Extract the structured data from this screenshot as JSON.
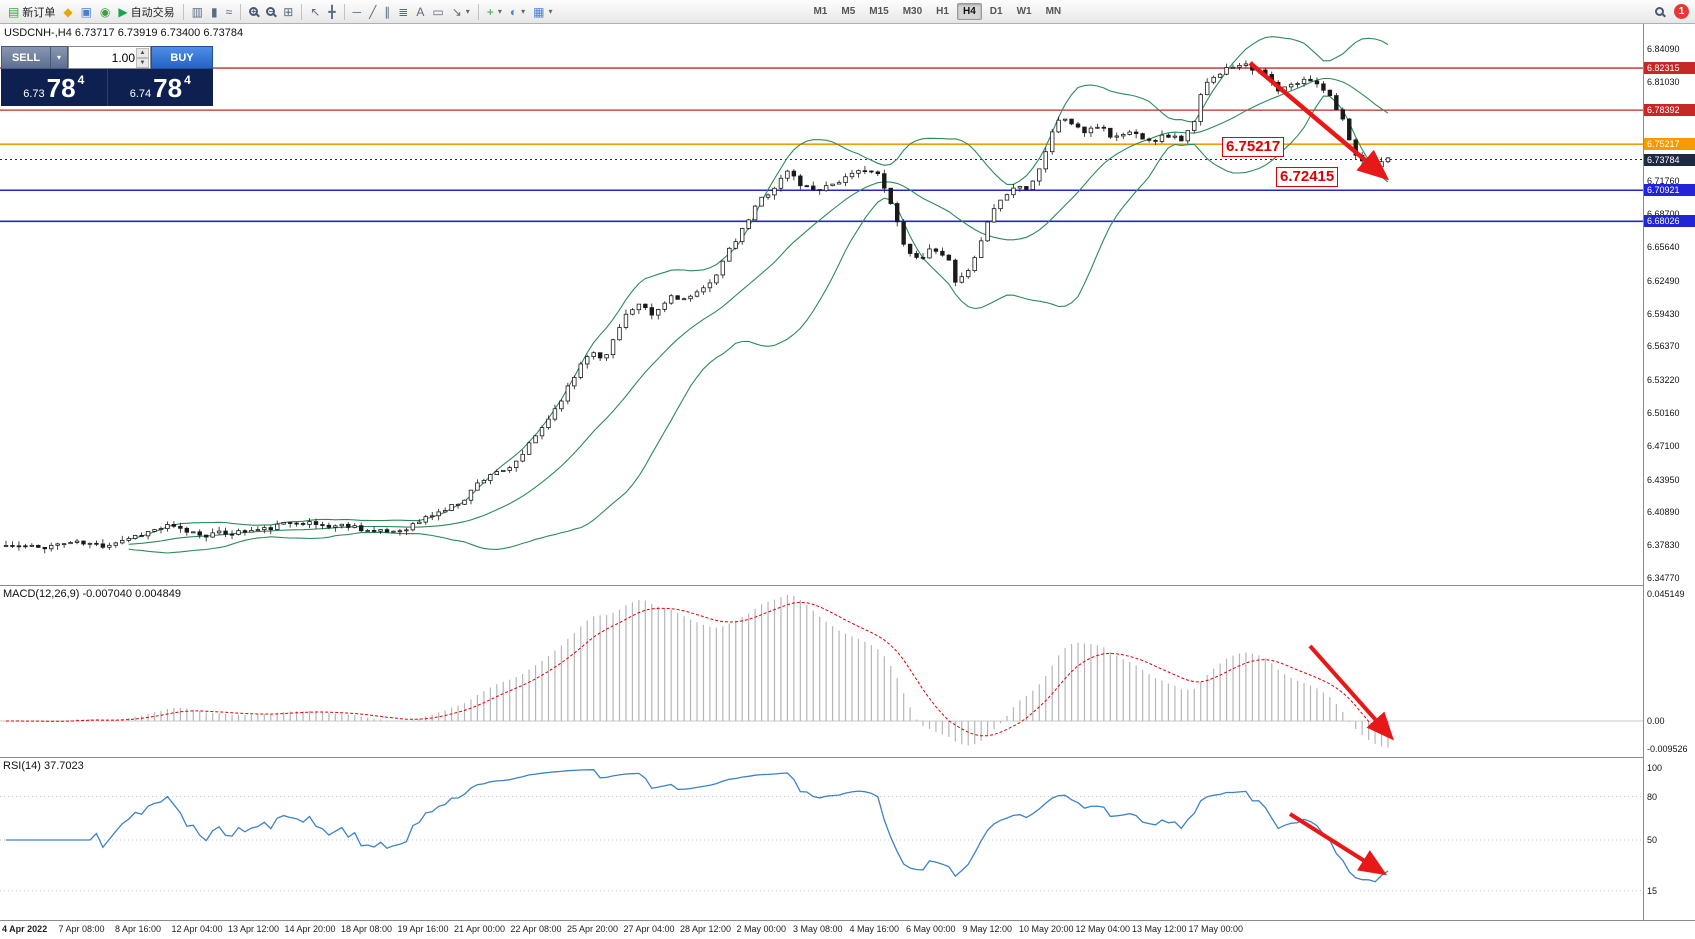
{
  "toolbar": {
    "notification_count": "1",
    "groups": [
      {
        "items": [
          {
            "name": "new-order-button",
            "glyph": "▤",
            "color": "#3c9f40",
            "label": "新订单"
          },
          {
            "name": "layout-button",
            "glyph": "◆",
            "color": "#e5a800"
          },
          {
            "name": "charts-button",
            "glyph": "▣",
            "color": "#4a7fd4"
          },
          {
            "name": "refresh-button",
            "glyph": "◉",
            "color": "#3c9f40"
          },
          {
            "name": "algo-trading-button",
            "glyph": "▶",
            "color": "#19a54a",
            "label": "自动交易"
          }
        ]
      },
      {
        "type": "sep"
      },
      {
        "items": [
          {
            "name": "bars-chart-type-button",
            "glyph": "▥"
          },
          {
            "name": "candles-chart-type-button",
            "glyph": "▮"
          },
          {
            "name": "line-chart-type-button",
            "glyph": "≈"
          }
        ]
      },
      {
        "type": "sep"
      },
      {
        "items": [
          {
            "name": "zoom-in-button",
            "shape": "mag",
            "sign": "+"
          },
          {
            "name": "zoom-out-button",
            "shape": "mag",
            "sign": "−"
          },
          {
            "name": "tile-windows-button",
            "glyph": "⊞"
          }
        ]
      },
      {
        "type": "sep"
      },
      {
        "items": [
          {
            "name": "cursor-tool-button",
            "glyph": "↖"
          },
          {
            "name": "crosshair-tool-button",
            "glyph": "╋"
          }
        ]
      },
      {
        "type": "sep"
      },
      {
        "items": [
          {
            "name": "horizontal-line-tool-button",
            "glyph": "─"
          },
          {
            "name": "trendline-tool-button",
            "glyph": "╱"
          },
          {
            "name": "channel-tool-button",
            "glyph": "∥"
          },
          {
            "name": "fibonacci-tool-button",
            "glyph": "≣"
          },
          {
            "name": "text-tool-button",
            "glyph": "A"
          },
          {
            "name": "label-tool-button",
            "glyph": "▭"
          },
          {
            "name": "arrows-tool-dropdown",
            "glyph": "↘",
            "caret": true
          }
        ]
      },
      {
        "type": "sep"
      },
      {
        "items": [
          {
            "name": "indicators-dropdown",
            "glyph": "+",
            "color": "#2f9e44",
            "caret": true
          },
          {
            "name": "period-dropdown",
            "glyph": "◐",
            "color": "#4a7fd4",
            "caret": true
          },
          {
            "name": "template-dropdown",
            "glyph": "▦",
            "color": "#4a7fd4",
            "caret": true
          }
        ]
      }
    ],
    "timeframes": [
      {
        "label": "M1"
      },
      {
        "label": "M5"
      },
      {
        "label": "M15"
      },
      {
        "label": "M30"
      },
      {
        "label": "H1"
      },
      {
        "label": "H4",
        "active": true
      },
      {
        "label": "D1"
      },
      {
        "label": "W1"
      },
      {
        "label": "MN"
      }
    ]
  },
  "chart": {
    "title": "USDCNH-,H4 6.73717 6.73919 6.73400 6.73784"
  },
  "trade_panel": {
    "sell_label": "SELL",
    "buy_label": "BUY",
    "volume": "1.00",
    "sell_price": {
      "base": "6.73",
      "pips": "78",
      "point": "4"
    },
    "buy_price": {
      "base": "6.74",
      "pips": "78",
      "point": "4"
    }
  },
  "annotations": {
    "upper": "6.75217",
    "lower": "6.72415"
  },
  "price_axis": {
    "regular": [
      "6.84090",
      "6.81030",
      "6.71760",
      "6.68700",
      "6.65640",
      "6.62490",
      "6.59430",
      "6.56370",
      "6.53220",
      "6.50160",
      "6.47100",
      "6.43950",
      "6.40890",
      "6.37830",
      "6.34770"
    ],
    "levels": [
      {
        "value": "6.82315",
        "color": "#c62828",
        "width": 1.3
      },
      {
        "value": "6.78392",
        "color": "#c62828",
        "width": 1.3
      },
      {
        "value": "6.75217",
        "color": "#f59b00",
        "width": 1.6
      },
      {
        "value": "6.73784",
        "color": "#1e2a44",
        "width": 1,
        "dash": "2,3"
      },
      {
        "value": "6.70921",
        "color": "#2323d8",
        "width": 1.6
      },
      {
        "value": "6.68026",
        "color": "#2323d8",
        "width": 1.6
      }
    ]
  },
  "indicators": {
    "macd": {
      "label": "MACD(12,26,9) -0.007040 0.004849",
      "axis": [
        "0.045149",
        "0.00",
        "-0.009526"
      ]
    },
    "rsi": {
      "label": "RSI(14) 37.7023",
      "axis": [
        "100",
        "80",
        "50",
        "15"
      ]
    }
  },
  "time_axis": [
    "4 Apr 2022",
    "7 Apr 08:00",
    "8 Apr 16:00",
    "12 Apr 04:00",
    "13 Apr 12:00",
    "14 Apr 20:00",
    "18 Apr 08:00",
    "19 Apr 16:00",
    "21 Apr 00:00",
    "22 Apr 08:00",
    "25 Apr 20:00",
    "27 Apr 04:00",
    "28 Apr 12:00",
    "2 May 00:00",
    "3 May 08:00",
    "4 May 16:00",
    "6 May 00:00",
    "9 May 12:00",
    "10 May 20:00",
    "12 May 04:00",
    "13 May 12:00",
    "17 May 00:00"
  ],
  "chart_data": {
    "type": "candlestick",
    "symbol": "USDCNH-",
    "timeframe": "H4",
    "ohlc_current": {
      "open": 6.73717,
      "high": 6.73919,
      "low": 6.734,
      "close": 6.73784
    },
    "y_range": [
      6.3477,
      6.8409
    ],
    "bars": 215,
    "overlays": [
      {
        "name": "Bollinger Bands",
        "period": 20,
        "deviation": 2,
        "color": "#2e8b57"
      }
    ],
    "indicator_panes": [
      {
        "name": "MACD",
        "fast": 12,
        "slow": 26,
        "signal": 9,
        "current_main": -0.00704,
        "current_signal": 0.004849,
        "axis_max": 0.045149,
        "axis_min": -0.009526,
        "histogram_color": "#b6b6b6",
        "signal_color": "#e00000"
      },
      {
        "name": "RSI",
        "period": 14,
        "current": 37.7023,
        "levels": [
          80,
          50,
          15
        ],
        "line_color": "#3c82c8"
      }
    ],
    "horizontal_levels": [
      6.82315,
      6.78392,
      6.75217,
      6.70921,
      6.68026
    ],
    "price_waypoints": [
      [
        0,
        6.378
      ],
      [
        0.023,
        6.376
      ],
      [
        0.047,
        6.381
      ],
      [
        0.07,
        6.378
      ],
      [
        0.086,
        6.384
      ],
      [
        0.101,
        6.39
      ],
      [
        0.117,
        6.396
      ],
      [
        0.128,
        6.392
      ],
      [
        0.144,
        6.388
      ],
      [
        0.163,
        6.39
      ],
      [
        0.187,
        6.393
      ],
      [
        0.21,
        6.401
      ],
      [
        0.222,
        6.398
      ],
      [
        0.233,
        6.396
      ],
      [
        0.249,
        6.397
      ],
      [
        0.268,
        6.39
      ],
      [
        0.284,
        6.392
      ],
      [
        0.296,
        6.398
      ],
      [
        0.307,
        6.406
      ],
      [
        0.319,
        6.412
      ],
      [
        0.331,
        6.421
      ],
      [
        0.342,
        6.437
      ],
      [
        0.354,
        6.448
      ],
      [
        0.362,
        6.445
      ],
      [
        0.373,
        6.462
      ],
      [
        0.385,
        6.483
      ],
      [
        0.397,
        6.505
      ],
      [
        0.409,
        6.53
      ],
      [
        0.416,
        6.548
      ],
      [
        0.424,
        6.562
      ],
      [
        0.432,
        6.548
      ],
      [
        0.44,
        6.572
      ],
      [
        0.447,
        6.592
      ],
      [
        0.459,
        6.602
      ],
      [
        0.467,
        6.592
      ],
      [
        0.475,
        6.601
      ],
      [
        0.482,
        6.612
      ],
      [
        0.49,
        6.607
      ],
      [
        0.502,
        6.613
      ],
      [
        0.514,
        6.632
      ],
      [
        0.523,
        6.652
      ],
      [
        0.533,
        6.672
      ],
      [
        0.545,
        6.7
      ],
      [
        0.556,
        6.712
      ],
      [
        0.566,
        6.728
      ],
      [
        0.576,
        6.713
      ],
      [
        0.587,
        6.71
      ],
      [
        0.599,
        6.716
      ],
      [
        0.611,
        6.722
      ],
      [
        0.622,
        6.73
      ],
      [
        0.632,
        6.722
      ],
      [
        0.642,
        6.69
      ],
      [
        0.652,
        6.652
      ],
      [
        0.661,
        6.645
      ],
      [
        0.671,
        6.656
      ],
      [
        0.681,
        6.648
      ],
      [
        0.686,
        6.622
      ],
      [
        0.696,
        6.632
      ],
      [
        0.704,
        6.652
      ],
      [
        0.712,
        6.69
      ],
      [
        0.72,
        6.7
      ],
      [
        0.73,
        6.713
      ],
      [
        0.739,
        6.712
      ],
      [
        0.749,
        6.732
      ],
      [
        0.756,
        6.762
      ],
      [
        0.764,
        6.778
      ],
      [
        0.772,
        6.771
      ],
      [
        0.782,
        6.762
      ],
      [
        0.792,
        6.771
      ],
      [
        0.801,
        6.757
      ],
      [
        0.811,
        6.764
      ],
      [
        0.821,
        6.76
      ],
      [
        0.831,
        6.756
      ],
      [
        0.84,
        6.761
      ],
      [
        0.85,
        6.756
      ],
      [
        0.86,
        6.772
      ],
      [
        0.865,
        6.8
      ],
      [
        0.873,
        6.816
      ],
      [
        0.881,
        6.821
      ],
      [
        0.889,
        6.826
      ],
      [
        0.896,
        6.829
      ],
      [
        0.904,
        6.821
      ],
      [
        0.912,
        6.816
      ],
      [
        0.92,
        6.801
      ],
      [
        0.928,
        6.806
      ],
      [
        0.938,
        6.811
      ],
      [
        0.946,
        6.813
      ],
      [
        0.956,
        6.801
      ],
      [
        0.963,
        6.786
      ],
      [
        0.969,
        6.771
      ],
      [
        0.974,
        6.742
      ],
      [
        0.982,
        6.736
      ],
      [
        0.99,
        6.733
      ],
      [
        1,
        6.738
      ]
    ]
  }
}
